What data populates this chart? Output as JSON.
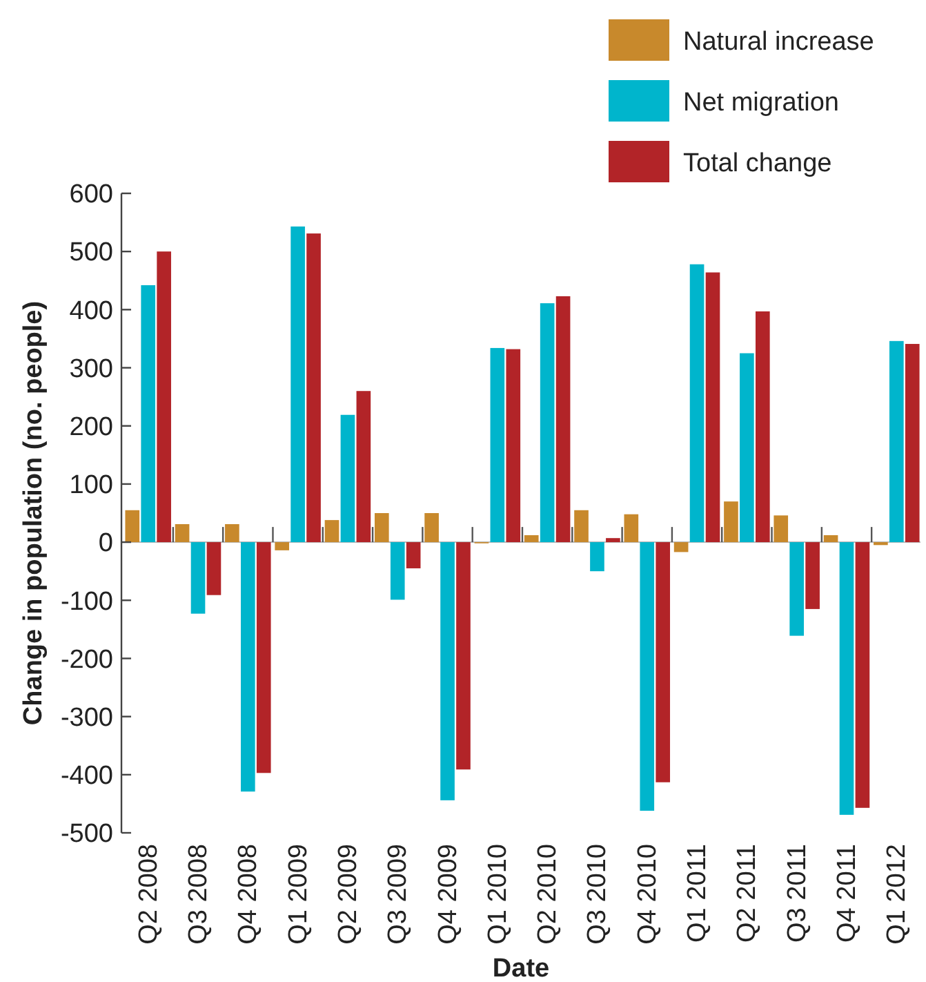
{
  "chart_data": {
    "type": "bar",
    "xlabel": "Date",
    "ylabel": "Change in population (no. people)",
    "categories": [
      "Q2 2008",
      "Q3 2008",
      "Q4 2008",
      "Q1 2009",
      "Q2 2009",
      "Q3 2009",
      "Q4 2009",
      "Q1 2010",
      "Q2 2010",
      "Q3 2010",
      "Q4 2010",
      "Q1 2011",
      "Q2 2011",
      "Q3 2011",
      "Q4 2011",
      "Q1 2012"
    ],
    "series": [
      {
        "name": "Natural increase",
        "color": "#c8892c",
        "values": [
          55,
          31,
          31,
          -14,
          38,
          50,
          50,
          -2,
          12,
          55,
          48,
          -17,
          70,
          46,
          12,
          -5
        ]
      },
      {
        "name": "Net migration",
        "color": "#00b5cc",
        "values": [
          442,
          -123,
          -429,
          543,
          219,
          -99,
          -444,
          334,
          411,
          -50,
          -462,
          478,
          325,
          -161,
          -469,
          346
        ]
      },
      {
        "name": "Total change",
        "color": "#b22428",
        "values": [
          500,
          -91,
          -397,
          531,
          260,
          -45,
          -391,
          332,
          423,
          7,
          -413,
          464,
          397,
          -115,
          -457,
          341
        ]
      }
    ],
    "ylim": [
      -500,
      600
    ],
    "yticks": [
      -500,
      -400,
      -300,
      -200,
      -100,
      0,
      100,
      200,
      300,
      400,
      500,
      600
    ],
    "legend": "top right"
  }
}
